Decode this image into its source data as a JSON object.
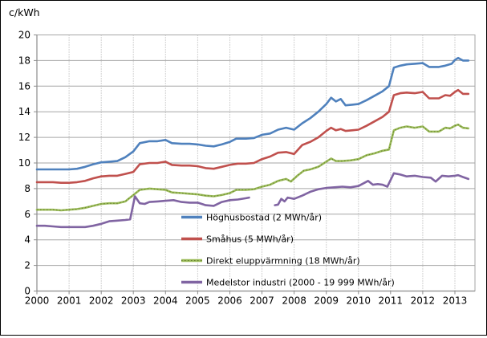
{
  "title": "c/kWh",
  "chart_data": {
    "type": "line",
    "title": "c/kWh",
    "xlabel": "",
    "ylabel": "c/kWh",
    "ylim": [
      0,
      20
    ],
    "y_ticks": [
      "0",
      "2",
      "4",
      "6",
      "8",
      "10",
      "12",
      "14",
      "16",
      "18",
      "20"
    ],
    "x_ticks": [
      "2000",
      "2001",
      "2002",
      "2003",
      "2004",
      "2005",
      "2006",
      "2007",
      "2008",
      "2009",
      "2010",
      "2011",
      "2012",
      "2013"
    ],
    "x_range": [
      2000,
      2013.62
    ],
    "grid": {
      "horizontal": "solid",
      "vertical": "dotted",
      "grid_color": "#A6A6A6",
      "axis_color": "#8C8C8C"
    },
    "legend_position": "inside lower right",
    "series": [
      {
        "name": "Höghusbostad (2 MWh/år)",
        "color": "#4F81BD",
        "points": [
          [
            2000.0,
            9.5
          ],
          [
            2000.25,
            9.5
          ],
          [
            2000.5,
            9.5
          ],
          [
            2000.75,
            9.5
          ],
          [
            2001.0,
            9.5
          ],
          [
            2001.25,
            9.55
          ],
          [
            2001.5,
            9.7
          ],
          [
            2001.75,
            9.9
          ],
          [
            2002.0,
            10.05
          ],
          [
            2002.25,
            10.1
          ],
          [
            2002.5,
            10.15
          ],
          [
            2002.75,
            10.45
          ],
          [
            2003.0,
            10.9
          ],
          [
            2003.2,
            11.55
          ],
          [
            2003.5,
            11.7
          ],
          [
            2003.75,
            11.7
          ],
          [
            2004.0,
            11.8
          ],
          [
            2004.2,
            11.55
          ],
          [
            2004.5,
            11.5
          ],
          [
            2004.75,
            11.5
          ],
          [
            2005.0,
            11.45
          ],
          [
            2005.25,
            11.35
          ],
          [
            2005.5,
            11.3
          ],
          [
            2005.75,
            11.45
          ],
          [
            2006.0,
            11.65
          ],
          [
            2006.2,
            11.9
          ],
          [
            2006.5,
            11.9
          ],
          [
            2006.75,
            11.95
          ],
          [
            2007.0,
            12.2
          ],
          [
            2007.25,
            12.3
          ],
          [
            2007.5,
            12.6
          ],
          [
            2007.75,
            12.75
          ],
          [
            2008.0,
            12.6
          ],
          [
            2008.25,
            13.1
          ],
          [
            2008.5,
            13.5
          ],
          [
            2008.75,
            14.0
          ],
          [
            2009.0,
            14.6
          ],
          [
            2009.15,
            15.1
          ],
          [
            2009.3,
            14.8
          ],
          [
            2009.45,
            15.0
          ],
          [
            2009.6,
            14.5
          ],
          [
            2009.8,
            14.55
          ],
          [
            2010.0,
            14.6
          ],
          [
            2010.25,
            14.9
          ],
          [
            2010.5,
            15.25
          ],
          [
            2010.75,
            15.6
          ],
          [
            2010.95,
            16.0
          ],
          [
            2011.1,
            17.45
          ],
          [
            2011.3,
            17.6
          ],
          [
            2011.5,
            17.7
          ],
          [
            2011.75,
            17.75
          ],
          [
            2012.0,
            17.8
          ],
          [
            2012.2,
            17.5
          ],
          [
            2012.5,
            17.5
          ],
          [
            2012.7,
            17.6
          ],
          [
            2012.9,
            17.75
          ],
          [
            2013.0,
            18.05
          ],
          [
            2013.1,
            18.2
          ],
          [
            2013.25,
            18.0
          ],
          [
            2013.42,
            18.0
          ]
        ]
      },
      {
        "name": "Småhus (5 MWh/år)",
        "color": "#C0504D",
        "points": [
          [
            2000.0,
            8.5
          ],
          [
            2000.25,
            8.5
          ],
          [
            2000.5,
            8.5
          ],
          [
            2000.75,
            8.45
          ],
          [
            2001.0,
            8.45
          ],
          [
            2001.25,
            8.5
          ],
          [
            2001.5,
            8.6
          ],
          [
            2001.75,
            8.8
          ],
          [
            2002.0,
            8.95
          ],
          [
            2002.25,
            9.0
          ],
          [
            2002.5,
            9.0
          ],
          [
            2002.75,
            9.15
          ],
          [
            2003.0,
            9.3
          ],
          [
            2003.2,
            9.9
          ],
          [
            2003.5,
            10.0
          ],
          [
            2003.75,
            10.0
          ],
          [
            2004.0,
            10.1
          ],
          [
            2004.2,
            9.85
          ],
          [
            2004.5,
            9.8
          ],
          [
            2004.75,
            9.8
          ],
          [
            2005.0,
            9.75
          ],
          [
            2005.25,
            9.6
          ],
          [
            2005.5,
            9.55
          ],
          [
            2005.75,
            9.7
          ],
          [
            2006.0,
            9.85
          ],
          [
            2006.25,
            9.95
          ],
          [
            2006.5,
            9.95
          ],
          [
            2006.75,
            10.0
          ],
          [
            2007.0,
            10.3
          ],
          [
            2007.25,
            10.5
          ],
          [
            2007.5,
            10.8
          ],
          [
            2007.75,
            10.85
          ],
          [
            2008.0,
            10.7
          ],
          [
            2008.25,
            11.4
          ],
          [
            2008.5,
            11.65
          ],
          [
            2008.75,
            12.0
          ],
          [
            2009.0,
            12.5
          ],
          [
            2009.15,
            12.75
          ],
          [
            2009.3,
            12.55
          ],
          [
            2009.45,
            12.65
          ],
          [
            2009.6,
            12.5
          ],
          [
            2009.8,
            12.55
          ],
          [
            2010.0,
            12.6
          ],
          [
            2010.25,
            12.9
          ],
          [
            2010.5,
            13.25
          ],
          [
            2010.75,
            13.6
          ],
          [
            2010.95,
            14.0
          ],
          [
            2011.1,
            15.3
          ],
          [
            2011.3,
            15.45
          ],
          [
            2011.5,
            15.5
          ],
          [
            2011.75,
            15.45
          ],
          [
            2012.0,
            15.55
          ],
          [
            2012.2,
            15.05
          ],
          [
            2012.5,
            15.05
          ],
          [
            2012.7,
            15.3
          ],
          [
            2012.85,
            15.25
          ],
          [
            2013.0,
            15.55
          ],
          [
            2013.1,
            15.7
          ],
          [
            2013.25,
            15.4
          ],
          [
            2013.42,
            15.4
          ]
        ]
      },
      {
        "name": "Direkt eluppvärmning (18 MWh/år)",
        "color": "#9BBB59",
        "overlay": "#647f2f",
        "points": [
          [
            2000.0,
            6.35
          ],
          [
            2000.25,
            6.35
          ],
          [
            2000.5,
            6.35
          ],
          [
            2000.75,
            6.3
          ],
          [
            2001.0,
            6.35
          ],
          [
            2001.25,
            6.4
          ],
          [
            2001.5,
            6.5
          ],
          [
            2001.75,
            6.65
          ],
          [
            2002.0,
            6.8
          ],
          [
            2002.25,
            6.85
          ],
          [
            2002.5,
            6.85
          ],
          [
            2002.75,
            7.0
          ],
          [
            2003.0,
            7.5
          ],
          [
            2003.2,
            7.9
          ],
          [
            2003.5,
            8.0
          ],
          [
            2003.75,
            7.95
          ],
          [
            2004.0,
            7.9
          ],
          [
            2004.2,
            7.7
          ],
          [
            2004.5,
            7.65
          ],
          [
            2004.75,
            7.6
          ],
          [
            2005.0,
            7.55
          ],
          [
            2005.25,
            7.45
          ],
          [
            2005.5,
            7.4
          ],
          [
            2005.75,
            7.5
          ],
          [
            2006.0,
            7.65
          ],
          [
            2006.2,
            7.9
          ],
          [
            2006.5,
            7.9
          ],
          [
            2006.75,
            7.95
          ],
          [
            2007.0,
            8.15
          ],
          [
            2007.25,
            8.3
          ],
          [
            2007.5,
            8.6
          ],
          [
            2007.75,
            8.75
          ],
          [
            2007.9,
            8.55
          ],
          [
            2008.1,
            9.0
          ],
          [
            2008.3,
            9.4
          ],
          [
            2008.5,
            9.5
          ],
          [
            2008.75,
            9.7
          ],
          [
            2009.0,
            10.1
          ],
          [
            2009.15,
            10.35
          ],
          [
            2009.3,
            10.15
          ],
          [
            2009.5,
            10.15
          ],
          [
            2009.75,
            10.2
          ],
          [
            2010.0,
            10.3
          ],
          [
            2010.25,
            10.6
          ],
          [
            2010.5,
            10.75
          ],
          [
            2010.75,
            10.95
          ],
          [
            2010.95,
            11.05
          ],
          [
            2011.1,
            12.55
          ],
          [
            2011.3,
            12.75
          ],
          [
            2011.5,
            12.85
          ],
          [
            2011.75,
            12.75
          ],
          [
            2012.0,
            12.85
          ],
          [
            2012.2,
            12.45
          ],
          [
            2012.5,
            12.45
          ],
          [
            2012.7,
            12.75
          ],
          [
            2012.85,
            12.7
          ],
          [
            2013.0,
            12.9
          ],
          [
            2013.1,
            13.0
          ],
          [
            2013.25,
            12.75
          ],
          [
            2013.42,
            12.7
          ]
        ]
      },
      {
        "name": "Medelstor industri (2000 - 19 999 MWh/år)",
        "color": "#8064A2",
        "points": [
          [
            2000.0,
            5.1
          ],
          [
            2000.25,
            5.1
          ],
          [
            2000.5,
            5.05
          ],
          [
            2000.75,
            5.0
          ],
          [
            2001.0,
            5.0
          ],
          [
            2001.25,
            5.0
          ],
          [
            2001.5,
            5.0
          ],
          [
            2001.75,
            5.1
          ],
          [
            2002.0,
            5.25
          ],
          [
            2002.25,
            5.45
          ],
          [
            2002.5,
            5.5
          ],
          [
            2002.75,
            5.55
          ],
          [
            2002.9,
            5.6
          ],
          [
            2003.05,
            7.4
          ],
          [
            2003.2,
            6.85
          ],
          [
            2003.35,
            6.8
          ],
          [
            2003.5,
            6.95
          ],
          [
            2003.75,
            7.0
          ],
          [
            2004.0,
            7.05
          ],
          [
            2004.25,
            7.1
          ],
          [
            2004.5,
            6.95
          ],
          [
            2004.75,
            6.9
          ],
          [
            2005.0,
            6.9
          ],
          [
            2005.25,
            6.7
          ],
          [
            2005.5,
            6.65
          ],
          [
            2005.75,
            6.95
          ],
          [
            2006.0,
            7.1
          ],
          [
            2006.25,
            7.15
          ],
          [
            2006.5,
            7.25
          ],
          [
            2006.6,
            7.3
          ],
          null,
          [
            2007.4,
            6.7
          ],
          [
            2007.5,
            6.75
          ],
          [
            2007.6,
            7.2
          ],
          [
            2007.7,
            7.0
          ],
          [
            2007.8,
            7.3
          ],
          [
            2008.0,
            7.2
          ],
          [
            2008.25,
            7.45
          ],
          [
            2008.5,
            7.75
          ],
          [
            2008.75,
            7.95
          ],
          [
            2009.0,
            8.05
          ],
          [
            2009.25,
            8.1
          ],
          [
            2009.5,
            8.15
          ],
          [
            2009.75,
            8.1
          ],
          [
            2010.0,
            8.2
          ],
          [
            2010.3,
            8.6
          ],
          [
            2010.45,
            8.3
          ],
          [
            2010.6,
            8.35
          ],
          [
            2010.75,
            8.3
          ],
          [
            2010.9,
            8.15
          ],
          [
            2011.1,
            9.2
          ],
          [
            2011.3,
            9.1
          ],
          [
            2011.5,
            8.95
          ],
          [
            2011.75,
            9.0
          ],
          [
            2012.0,
            8.9
          ],
          [
            2012.25,
            8.85
          ],
          [
            2012.4,
            8.55
          ],
          [
            2012.6,
            9.0
          ],
          [
            2012.8,
            8.95
          ],
          [
            2013.0,
            9.0
          ],
          [
            2013.1,
            9.05
          ],
          [
            2013.25,
            8.9
          ],
          [
            2013.42,
            8.75
          ]
        ]
      }
    ]
  }
}
